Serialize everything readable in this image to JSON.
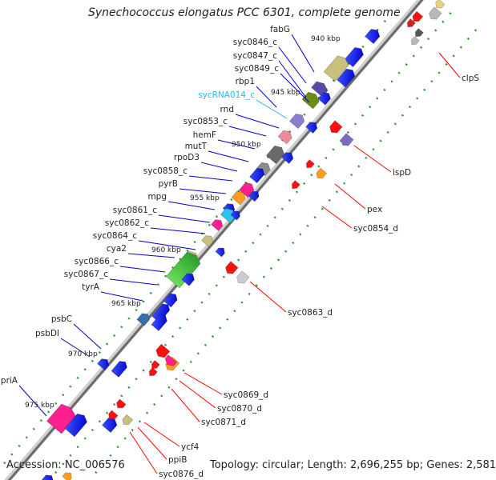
{
  "title": "Synechococcus elongatus PCC 6301, complete genome",
  "footer": {
    "accession": "Accession: NC_006576",
    "summary": "Topology: circular; Length: 2,696,255 bp; Genes: 2,581"
  },
  "colors": {
    "backbone": "#7a7a7a",
    "forward_label": "#0000cc",
    "reverse_label": "#ff0000",
    "rna_label": "#29b6e6",
    "tick_dot": "#2a9a2a",
    "kbp_text": "#222222"
  },
  "ticks": [
    "940 kbp",
    "945 kbp",
    "950 kbp",
    "955 kbp",
    "960 kbp",
    "965 kbp",
    "970 kbp",
    "975 kbp"
  ],
  "forward_labels": [
    "fabG",
    "syc0846_c",
    "syc0847_c",
    "syc0849_c",
    "rbp1",
    "sycRNA014_c",
    "rnd",
    "syc0853_c",
    "hemF",
    "mutT",
    "rpoD3",
    "syc0858_c",
    "pyrB",
    "mpg",
    "syc0861_c",
    "syc0862_c",
    "syc0864_c",
    "cya2",
    "syc0866_c",
    "syc0867_c",
    "tyrA",
    "psbC",
    "psbDI",
    "priA"
  ],
  "reverse_labels": [
    "clpS",
    "ispD",
    "pex",
    "syc0854_d",
    "syc0863_d",
    "syc0869_d",
    "syc0870_d",
    "syc0871_d",
    "ycf4",
    "ppiB",
    "syc0876_d"
  ]
}
